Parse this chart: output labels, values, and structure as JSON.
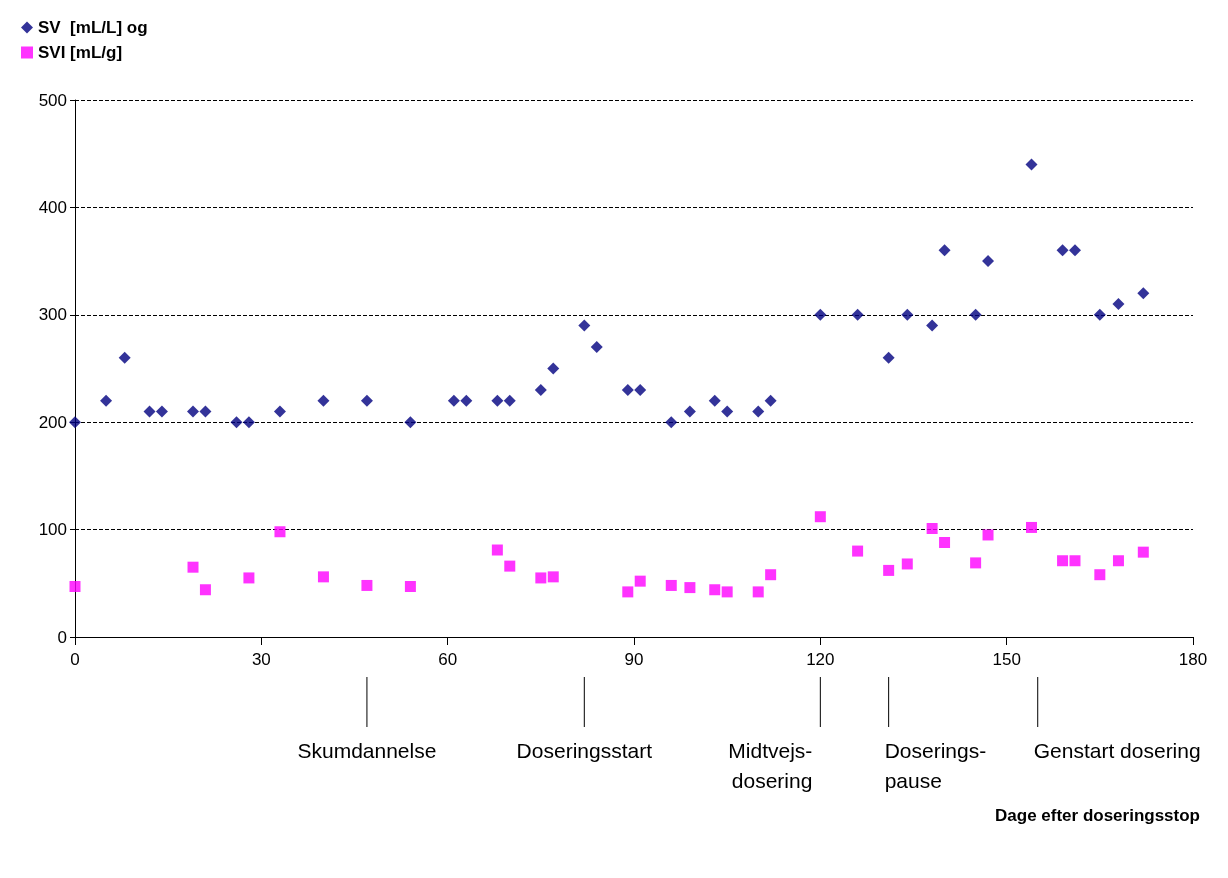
{
  "chart_data": {
    "type": "scatter",
    "annotations": [
      "Dage efter doseringsstop"
    ],
    "series": [
      {
        "name": "SV  [mL/L] og",
        "color": "#000080",
        "marker": "diamond",
        "x": [
          0,
          5,
          8,
          12,
          14,
          19,
          21,
          26,
          28,
          33,
          40,
          47,
          54,
          61,
          63,
          68,
          70,
          75,
          77,
          82,
          84,
          89,
          91,
          96,
          99,
          103,
          105,
          110,
          112,
          120,
          126,
          131,
          134,
          138,
          140,
          145,
          147,
          154,
          159,
          161,
          165,
          168,
          172
        ],
        "values": [
          200,
          220,
          260,
          210,
          210,
          210,
          210,
          200,
          200,
          210,
          220,
          220,
          200,
          220,
          220,
          220,
          220,
          230,
          250,
          290,
          270,
          230,
          230,
          200,
          210,
          220,
          210,
          210,
          220,
          300,
          300,
          260,
          300,
          290,
          360,
          300,
          350,
          440,
          360,
          360,
          300,
          310,
          320
        ]
      },
      {
        "name": "SVI [mL/g]",
        "color": "#ff00ff",
        "marker": "square",
        "x": [
          0,
          19,
          21,
          28,
          33,
          40,
          47,
          54,
          68,
          70,
          75,
          77,
          89,
          91,
          96,
          99,
          103,
          105,
          110,
          112,
          120,
          126,
          131,
          134,
          138,
          140,
          145,
          147,
          154,
          159,
          161,
          165,
          168,
          172
        ],
        "values": [
          47,
          65,
          44,
          55,
          98,
          56,
          48,
          47,
          81,
          66,
          55,
          56,
          42,
          52,
          48,
          46,
          44,
          42,
          42,
          58,
          112,
          80,
          62,
          68,
          101,
          88,
          69,
          95,
          102,
          71,
          71,
          58,
          71,
          79
        ]
      }
    ],
    "xlim": [
      0,
      180
    ],
    "xticks": [
      0,
      30,
      60,
      90,
      120,
      150,
      180
    ],
    "ylim": [
      0,
      500
    ],
    "yticks": [
      0,
      100,
      200,
      300,
      400,
      500
    ],
    "grid": "y",
    "legend": "top left",
    "ref_lines": [
      {
        "axis": "x",
        "value": 47,
        "label": "Skumdannelse"
      },
      {
        "axis": "x",
        "value": 82,
        "label": "Doseringsstart"
      },
      {
        "axis": "x",
        "value": 120,
        "label": "Midtvejs-\ndosering"
      },
      {
        "axis": "x",
        "value": 131,
        "label": "Doserings-\npause"
      },
      {
        "axis": "x",
        "value": 155,
        "label": "Genstart dosering"
      }
    ]
  }
}
